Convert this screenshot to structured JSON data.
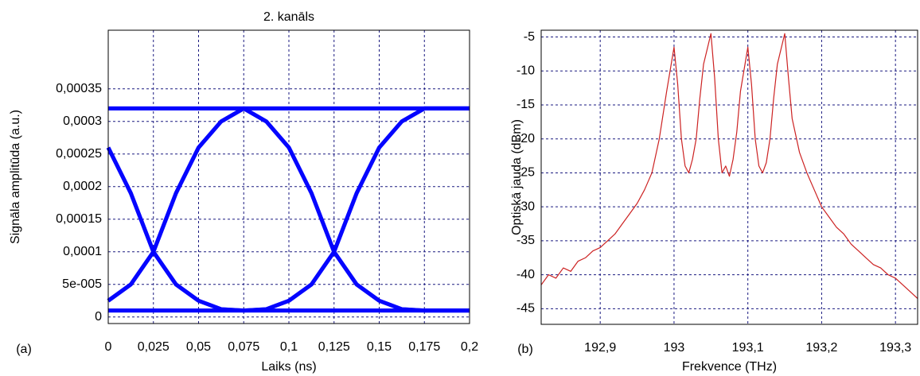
{
  "chart_data": [
    {
      "type": "line",
      "title": "2. kanāls",
      "panel_label": "(a)",
      "x_label": "Laiks (ns)",
      "y_label": "Signāla amplitūda (a.u.)",
      "color": "#0000ff",
      "grid": true,
      "xlim": [
        0,
        0.2
      ],
      "ylim": [
        -1e-05,
        0.00044
      ],
      "xticks": [
        0,
        {
          "value": 0.025,
          "label": "0,025"
        },
        {
          "value": 0.05,
          "label": "0,05"
        },
        {
          "value": 0.075,
          "label": "0,075"
        },
        {
          "value": 0.1,
          "label": "0,1"
        },
        {
          "value": 0.125,
          "label": "0,125"
        },
        {
          "value": 0.15,
          "label": "0,15"
        },
        {
          "value": 0.175,
          "label": "0,175"
        },
        {
          "value": 0.2,
          "label": "0,2"
        }
      ],
      "yticks": [
        0,
        {
          "value": 5e-05,
          "label": "5e-005"
        },
        {
          "value": 0.0001,
          "label": "0,0001"
        },
        {
          "value": 0.00015,
          "label": "0,00015"
        },
        {
          "value": 0.0002,
          "label": "0,0002"
        },
        {
          "value": 0.00025,
          "label": "0,00025"
        },
        {
          "value": 0.0003,
          "label": "0,0003"
        },
        {
          "value": 0.00035,
          "label": "0,00035"
        }
      ],
      "x": [
        0,
        0.0125,
        0.025,
        0.0375,
        0.05,
        0.0625,
        0.075,
        0.0875,
        0.1,
        0.1125,
        0.125,
        0.1375,
        0.15,
        0.1625,
        0.175,
        0.1875,
        0.2
      ],
      "series": [
        {
          "values": [
            1e-05,
            1e-05,
            1e-05,
            1e-05,
            1e-05,
            1e-05,
            1e-05,
            1e-05,
            1e-05,
            1e-05,
            1e-05,
            1e-05,
            1e-05,
            1e-05,
            1e-05,
            1e-05,
            1e-05
          ]
        },
        {
          "values": [
            1e-05,
            1e-05,
            1e-05,
            1e-05,
            1e-05,
            1e-05,
            1e-05,
            1.2e-05,
            2.5e-05,
            5e-05,
            0.0001,
            0.00019,
            0.00026,
            0.0003,
            0.00032,
            0.00032,
            0.00032
          ]
        },
        {
          "values": [
            2.5e-05,
            5e-05,
            0.0001,
            0.00019,
            0.00026,
            0.0003,
            0.00032,
            0.0003,
            0.00026,
            0.00019,
            0.0001,
            5e-05,
            2.5e-05,
            1.2e-05,
            1e-05,
            1e-05,
            1e-05
          ]
        },
        {
          "values": [
            2.5e-05,
            5e-05,
            0.0001,
            0.00019,
            0.00026,
            0.0003,
            0.00032,
            0.00032,
            0.00032,
            0.00032,
            0.00032,
            0.00032,
            0.00032,
            0.00032,
            0.00032,
            0.00032,
            0.00032
          ]
        },
        {
          "values": [
            0.00026,
            0.00019,
            0.0001,
            5e-05,
            2.5e-05,
            1.2e-05,
            1e-05,
            1e-05,
            1e-05,
            1e-05,
            1e-05,
            1e-05,
            1e-05,
            1e-05,
            1e-05,
            1e-05,
            1e-05
          ]
        },
        {
          "values": [
            0.00026,
            0.00019,
            0.0001,
            5e-05,
            2.5e-05,
            1.2e-05,
            1e-05,
            1.2e-05,
            2.5e-05,
            5e-05,
            0.0001,
            0.00019,
            0.00026,
            0.0003,
            0.00032,
            0.00032,
            0.00032
          ]
        },
        {
          "values": [
            0.00032,
            0.00032,
            0.00032,
            0.00032,
            0.00032,
            0.00032,
            0.00032,
            0.0003,
            0.00026,
            0.00019,
            0.0001,
            5e-05,
            2.5e-05,
            1.2e-05,
            1e-05,
            1e-05,
            1e-05
          ]
        },
        {
          "values": [
            0.00032,
            0.00032,
            0.00032,
            0.00032,
            0.00032,
            0.00032,
            0.00032,
            0.00032,
            0.00032,
            0.00032,
            0.00032,
            0.00032,
            0.00032,
            0.00032,
            0.00032,
            0.00032,
            0.00032
          ]
        }
      ]
    },
    {
      "type": "line",
      "panel_label": "(b)",
      "x_label": "Frekvence (THz)",
      "y_label": "Optiskā jauda (dBm)",
      "color": "#cc2222",
      "grid": true,
      "xlim": [
        192.82,
        193.33
      ],
      "ylim": [
        -47.3,
        -4
      ],
      "xticks": [
        {
          "value": 192.9,
          "label": "192,9"
        },
        193,
        {
          "value": 193.1,
          "label": "193,1"
        },
        {
          "value": 193.2,
          "label": "193,2"
        },
        {
          "value": 193.3,
          "label": "193,3"
        }
      ],
      "yticks": [
        -5,
        -10,
        -15,
        -20,
        -25,
        -30,
        -35,
        -40,
        -45
      ],
      "x": [
        192.82,
        192.83,
        192.84,
        192.85,
        192.86,
        192.87,
        192.88,
        192.89,
        192.9,
        192.91,
        192.92,
        192.93,
        192.94,
        192.95,
        192.96,
        192.97,
        192.98,
        192.99,
        193.0,
        193.005,
        193.01,
        193.015,
        193.02,
        193.025,
        193.03,
        193.035,
        193.04,
        193.05,
        193.055,
        193.06,
        193.065,
        193.07,
        193.075,
        193.08,
        193.085,
        193.09,
        193.1,
        193.105,
        193.11,
        193.115,
        193.12,
        193.125,
        193.13,
        193.135,
        193.14,
        193.15,
        193.155,
        193.16,
        193.17,
        193.18,
        193.19,
        193.2,
        193.21,
        193.22,
        193.23,
        193.24,
        193.25,
        193.26,
        193.27,
        193.28,
        193.29,
        193.3,
        193.31,
        193.32,
        193.33
      ],
      "values": [
        -41.5,
        -40,
        -40.5,
        -39,
        -39.5,
        -38,
        -37.5,
        -36.5,
        -36,
        -35,
        -34,
        -32.5,
        -31,
        -29.5,
        -27.5,
        -25,
        -20,
        -13,
        -6.5,
        -12,
        -20,
        -24,
        -25,
        -23,
        -20,
        -14,
        -9,
        -4.5,
        -11,
        -20,
        -25,
        -24,
        -25.5,
        -23,
        -19,
        -13,
        -6.5,
        -12,
        -20,
        -24,
        -25,
        -23.5,
        -20,
        -14,
        -9,
        -4.5,
        -11,
        -17,
        -22,
        -25,
        -27.5,
        -30,
        -31.5,
        -33,
        -34,
        -35.5,
        -36.5,
        -37.5,
        -38.5,
        -39,
        -40,
        -40.5,
        -41.5,
        -42.5,
        -43.5
      ]
    }
  ]
}
